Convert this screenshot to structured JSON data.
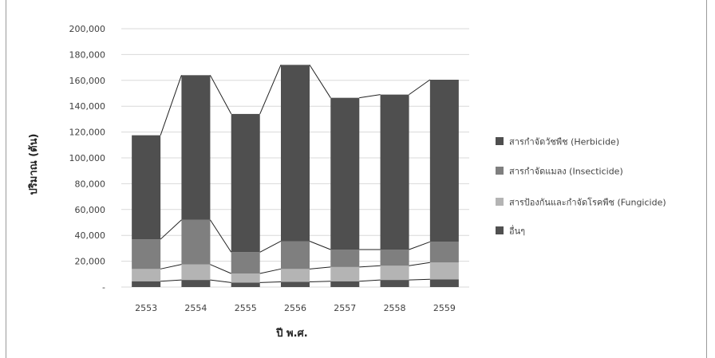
{
  "chart_data": {
    "type": "bar",
    "stacked": true,
    "categories": [
      "2553",
      "2554",
      "2555",
      "2556",
      "2557",
      "2558",
      "2559"
    ],
    "series": [
      {
        "name": "อื่นๆ",
        "color": "#505050",
        "values": [
          4500,
          5500,
          3500,
          4000,
          4500,
          5500,
          6000
        ]
      },
      {
        "name": "สารป้องกันและกำจัดโรคพืช (Fungicide)",
        "color": "#b4b4b4",
        "values": [
          9500,
          12000,
          7000,
          10000,
          11000,
          11000,
          13000
        ]
      },
      {
        "name": "สารกำจัดแมลง (Insecticide)",
        "color": "#7f7f7f",
        "values": [
          23000,
          34500,
          16500,
          21500,
          13500,
          12500,
          16000
        ]
      },
      {
        "name": "สารกำจัดวัชพืช (Herbicide)",
        "color": "#4f4f4f",
        "values": [
          80500,
          112000,
          107000,
          136500,
          117500,
          120000,
          125500
        ]
      }
    ],
    "legend_order": [
      3,
      2,
      1,
      0
    ],
    "y_tick_labels": [
      "-",
      "20,000",
      "40,000",
      "60,000",
      "80,000",
      "100,000",
      "120,000",
      "140,000",
      "160,000",
      "180,000",
      "200,000"
    ],
    "ylim": [
      0,
      200000
    ],
    "ylabel": "ปริมาณ (ตัน)",
    "xlabel": "ปี พ.ศ.",
    "grid": true,
    "series_lines": true,
    "legend_position": "right"
  }
}
